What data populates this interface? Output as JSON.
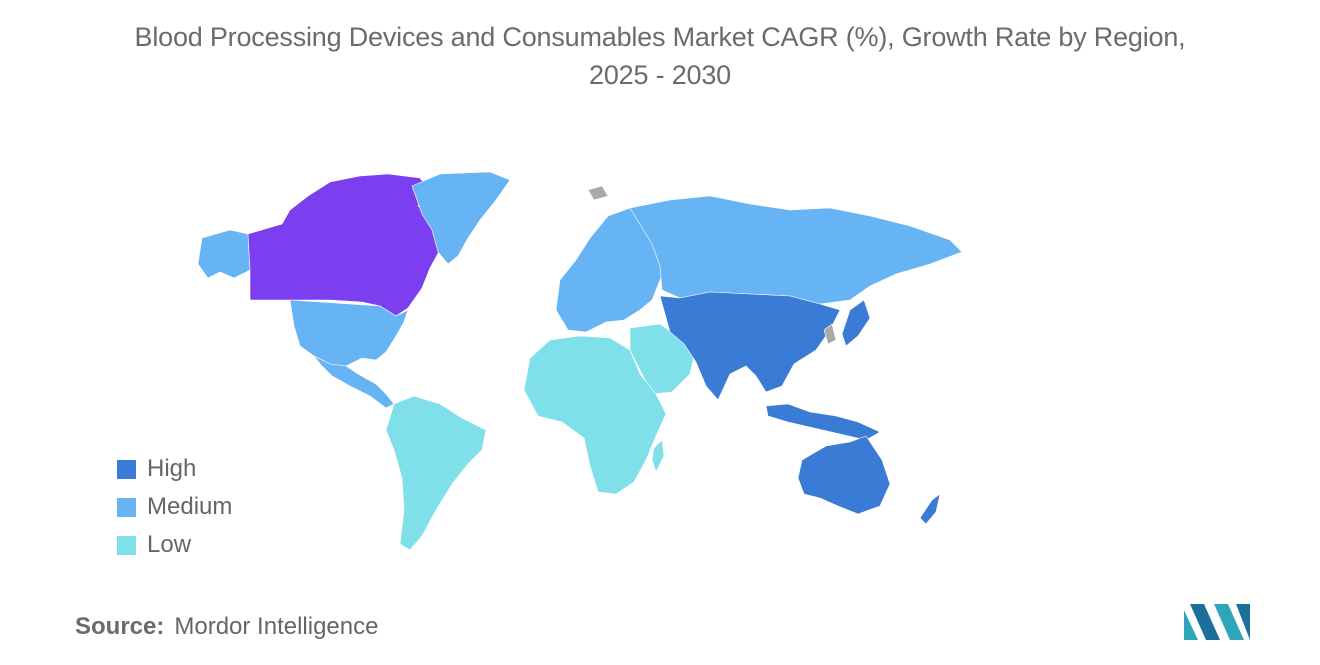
{
  "title_line1": "Blood Processing Devices and Consumables Market CAGR (%), Growth Rate by Region,",
  "title_line2": "2025 - 2030",
  "legend": [
    {
      "label": "High",
      "color": "#3a7bd5"
    },
    {
      "label": "Medium",
      "color": "#67b4f5"
    },
    {
      "label": "Low",
      "color": "#7fe0ea"
    }
  ],
  "highlight_color": "#7b3ff0",
  "no_data_color": "#a9a9a9",
  "regions": {
    "canada": "Highlight",
    "north_america_other": "Medium",
    "greenland": "Medium",
    "europe": "Medium",
    "russia": "Medium",
    "asia_pacific": "High",
    "australia": "High",
    "south_america": "Low",
    "africa": "Low",
    "middle_east": "Low"
  },
  "source": {
    "label": "Source:",
    "value": "Mordor Intelligence"
  }
}
